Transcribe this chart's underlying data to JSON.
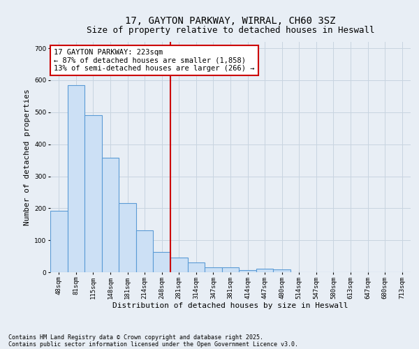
{
  "title_line1": "17, GAYTON PARKWAY, WIRRAL, CH60 3SZ",
  "title_line2": "Size of property relative to detached houses in Heswall",
  "xlabel": "Distribution of detached houses by size in Heswall",
  "ylabel": "Number of detached properties",
  "categories": [
    "48sqm",
    "81sqm",
    "115sqm",
    "148sqm",
    "181sqm",
    "214sqm",
    "248sqm",
    "281sqm",
    "314sqm",
    "347sqm",
    "381sqm",
    "414sqm",
    "447sqm",
    "480sqm",
    "514sqm",
    "547sqm",
    "580sqm",
    "613sqm",
    "647sqm",
    "680sqm",
    "713sqm"
  ],
  "values": [
    193,
    585,
    490,
    357,
    215,
    130,
    63,
    45,
    30,
    15,
    15,
    7,
    10,
    9,
    0,
    0,
    0,
    0,
    0,
    0,
    0
  ],
  "bar_color": "#cce0f5",
  "bar_edge_color": "#5b9bd5",
  "vline_x": 6.5,
  "vline_color": "#cc0000",
  "annotation_text": "17 GAYTON PARKWAY: 223sqm\n← 87% of detached houses are smaller (1,858)\n13% of semi-detached houses are larger (266) →",
  "annotation_box_color": "#ffffff",
  "annotation_box_edge_color": "#cc0000",
  "ylim": [
    0,
    720
  ],
  "yticks": [
    0,
    100,
    200,
    300,
    400,
    500,
    600,
    700
  ],
  "grid_color": "#c8d4e0",
  "bg_color": "#e8eef5",
  "plot_bg_color": "#e8eef5",
  "footer_line1": "Contains HM Land Registry data © Crown copyright and database right 2025.",
  "footer_line2": "Contains public sector information licensed under the Open Government Licence v3.0.",
  "title_fontsize": 10,
  "subtitle_fontsize": 9,
  "axis_label_fontsize": 8,
  "tick_fontsize": 6.5,
  "annotation_fontsize": 7.5,
  "footer_fontsize": 6
}
